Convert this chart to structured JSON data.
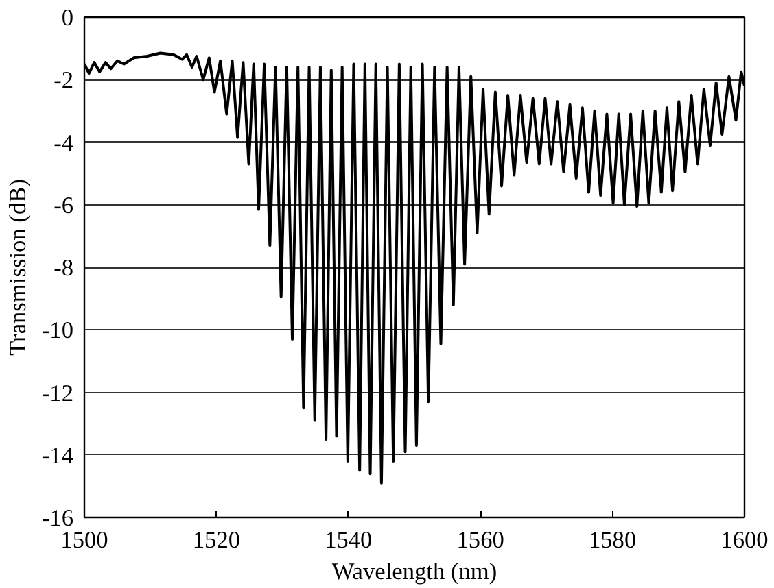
{
  "chart_data": {
    "type": "line",
    "xlabel": "Wavelength (nm)",
    "ylabel": "Transmission (dB)",
    "xlim": [
      1500,
      1600
    ],
    "ylim": [
      -16,
      0
    ],
    "xticks": [
      1500,
      1520,
      1540,
      1560,
      1580,
      1600
    ],
    "yticks": [
      -16,
      -14,
      -12,
      -10,
      -8,
      -6,
      -4,
      -2,
      0
    ],
    "grid": "y",
    "marker": "none",
    "line_style": "solid",
    "x": [
      1500,
      1500.7,
      1501.5,
      1502.3,
      1503.2,
      1504,
      1505,
      1506,
      1507.5,
      1509.5,
      1511.5,
      1513.5,
      1514.8,
      1515.5,
      1516.3,
      1517.0,
      1518.0,
      1518.9,
      1519.7,
      1520.6,
      1521.55,
      1522.4,
      1523.2,
      1524.05,
      1524.9,
      1525.65,
      1526.4,
      1527.25,
      1528.1,
      1528.95,
      1529.8,
      1530.65,
      1531.5,
      1532.35,
      1533.2,
      1534.05,
      1534.9,
      1535.75,
      1536.6,
      1537.4,
      1538.2,
      1539.05,
      1539.9,
      1540.8,
      1541.7,
      1542.5,
      1543.3,
      1544.15,
      1545.0,
      1545.9,
      1546.8,
      1547.7,
      1548.6,
      1549.45,
      1550.3,
      1551.2,
      1552.1,
      1553.05,
      1554.0,
      1554.95,
      1555.9,
      1556.75,
      1557.6,
      1558.55,
      1559.5,
      1560.4,
      1561.3,
      1562.25,
      1563.2,
      1564.15,
      1565.1,
      1566.05,
      1567.0,
      1567.95,
      1568.9,
      1569.8,
      1570.7,
      1571.65,
      1572.6,
      1573.55,
      1574.5,
      1575.45,
      1576.4,
      1577.3,
      1578.2,
      1579.15,
      1580.1,
      1580.95,
      1581.8,
      1582.75,
      1583.7,
      1584.6,
      1585.5,
      1586.45,
      1587.4,
      1588.25,
      1589.1,
      1590.05,
      1591.0,
      1591.95,
      1592.9,
      1593.85,
      1594.8,
      1595.7,
      1596.6,
      1597.65,
      1598.7,
      1599.5,
      1600
    ],
    "series": [
      {
        "color": "#000000",
        "values": [
          -1.5,
          -1.8,
          -1.45,
          -1.75,
          -1.45,
          -1.65,
          -1.4,
          -1.5,
          -1.3,
          -1.25,
          -1.15,
          -1.2,
          -1.35,
          -1.2,
          -1.6,
          -1.25,
          -2.0,
          -1.3,
          -2.4,
          -1.4,
          -3.1,
          -1.4,
          -3.85,
          -1.45,
          -4.7,
          -1.5,
          -6.15,
          -1.5,
          -7.3,
          -1.6,
          -8.95,
          -1.6,
          -10.3,
          -1.6,
          -12.5,
          -1.6,
          -12.9,
          -1.6,
          -13.5,
          -1.7,
          -13.4,
          -1.6,
          -14.2,
          -1.5,
          -14.5,
          -1.5,
          -14.6,
          -1.5,
          -14.9,
          -1.6,
          -14.2,
          -1.5,
          -13.9,
          -1.6,
          -13.7,
          -1.5,
          -12.3,
          -1.6,
          -10.45,
          -1.6,
          -9.2,
          -1.6,
          -7.9,
          -1.9,
          -6.9,
          -2.3,
          -6.3,
          -2.4,
          -5.4,
          -2.5,
          -5.05,
          -2.5,
          -4.65,
          -2.6,
          -4.7,
          -2.6,
          -4.7,
          -2.7,
          -4.95,
          -2.8,
          -5.15,
          -2.9,
          -5.6,
          -3.0,
          -5.7,
          -3.1,
          -5.95,
          -3.1,
          -6.0,
          -3.1,
          -6.05,
          -3.0,
          -5.95,
          -3.0,
          -5.6,
          -2.9,
          -5.55,
          -2.7,
          -4.95,
          -2.5,
          -4.7,
          -2.3,
          -4.1,
          -2.1,
          -3.75,
          -1.9,
          -3.3,
          -1.75,
          -2.2
        ]
      }
    ]
  }
}
